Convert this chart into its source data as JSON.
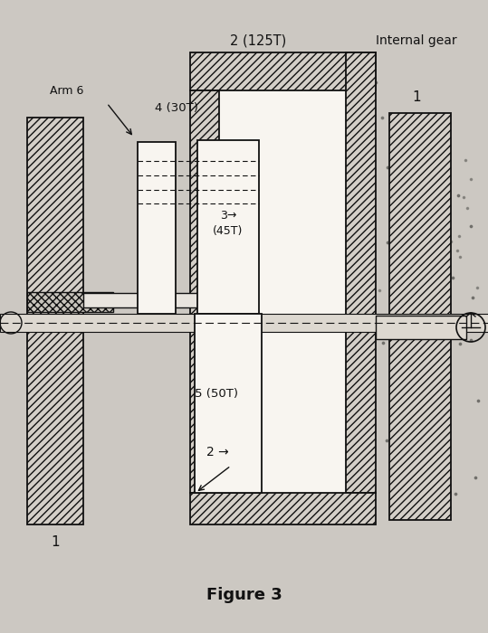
{
  "background_color": "#ccc8c2",
  "figure_title": "Figure 3",
  "title_fontsize": 13,
  "title_fontweight": "bold",
  "labels": {
    "gear2_top": "2 (125T)",
    "internal_gear": "Internal gear",
    "gear4": "4 (30T)",
    "arm6": "Arm 6",
    "gear3a": "3→",
    "gear3b": "(45T)",
    "gear5": "5 (50T)",
    "shaft1_left": "1",
    "shaft1_right": "1",
    "shaft2": "2"
  },
  "hatch_pattern": "////",
  "line_color": "#111111",
  "white_fill": "#f8f5f0",
  "hatch_fill": "#d4cfc8"
}
